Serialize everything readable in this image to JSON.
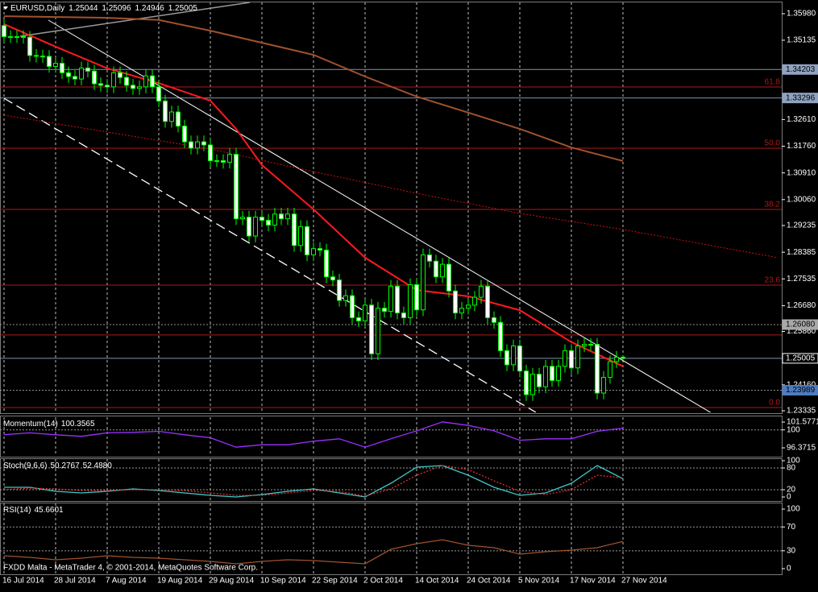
{
  "chart_data": [
    {
      "type": "candlestick",
      "title": "EURUSD,Daily",
      "up_color": "#000000",
      "down_color": "#ffffff",
      "wick_color": "#00ff00",
      "open": [
        1.356,
        1.3525,
        1.3525,
        1.3525,
        1.3523,
        1.3465,
        1.3463,
        1.3462,
        1.343,
        1.344,
        1.341,
        1.3398,
        1.339,
        1.3425,
        1.3415,
        1.3375,
        1.337,
        1.3365,
        1.341,
        1.3395,
        1.337,
        1.336,
        1.3365,
        1.34,
        1.3365,
        1.332,
        1.3255,
        1.3285,
        1.324,
        1.319,
        1.317,
        1.319,
        1.318,
        1.313,
        1.313,
        1.3125,
        1.315,
        1.2945,
        1.295,
        1.289,
        1.295,
        1.294,
        1.2925,
        1.296,
        1.2945,
        1.296,
        1.286,
        1.292,
        1.283,
        1.285,
        1.2845,
        1.276,
        1.275,
        1.2685,
        1.27,
        1.263,
        1.262,
        1.267,
        1.2515,
        1.266,
        1.265,
        1.273,
        1.2645,
        1.263,
        1.2735,
        1.2655,
        1.283,
        1.281,
        1.276,
        1.28,
        1.2715,
        1.2645,
        1.266,
        1.267,
        1.2695,
        1.273,
        1.263,
        1.2615,
        1.2525,
        1.248,
        1.254,
        1.246,
        1.2385,
        1.245,
        1.241,
        1.2475,
        1.243,
        1.2475,
        1.2525,
        1.247,
        1.254,
        1.2545,
        1.2545,
        1.239,
        1.244,
        1.249,
        1.25044
      ],
      "high": [
        1.358,
        1.3545,
        1.3545,
        1.3545,
        1.3543,
        1.3485,
        1.3483,
        1.3482,
        1.346,
        1.346,
        1.343,
        1.3418,
        1.3445,
        1.3445,
        1.3435,
        1.3395,
        1.339,
        1.343,
        1.343,
        1.3415,
        1.339,
        1.3385,
        1.342,
        1.342,
        1.3385,
        1.334,
        1.3305,
        1.3305,
        1.326,
        1.321,
        1.321,
        1.321,
        1.32,
        1.315,
        1.315,
        1.317,
        1.317,
        1.297,
        1.297,
        1.297,
        1.297,
        1.296,
        1.298,
        1.298,
        1.298,
        1.298,
        1.294,
        1.294,
        1.287,
        1.287,
        1.2865,
        1.278,
        1.277,
        1.272,
        1.272,
        1.265,
        1.269,
        1.269,
        1.268,
        1.268,
        1.275,
        1.275,
        1.2665,
        1.2755,
        1.2755,
        1.285,
        1.285,
        1.283,
        1.282,
        1.282,
        1.2735,
        1.268,
        1.269,
        1.2715,
        1.275,
        1.275,
        1.265,
        1.2635,
        1.2545,
        1.256,
        1.256,
        1.248,
        1.247,
        1.247,
        1.2495,
        1.2495,
        1.2495,
        1.2545,
        1.2545,
        1.256,
        1.2565,
        1.2565,
        1.2565,
        1.246,
        1.251,
        1.2524,
        1.25096
      ],
      "low": [
        1.3505,
        1.3505,
        1.3505,
        1.3503,
        1.3445,
        1.3443,
        1.3442,
        1.341,
        1.341,
        1.339,
        1.3378,
        1.337,
        1.337,
        1.3395,
        1.3355,
        1.335,
        1.3345,
        1.3345,
        1.3375,
        1.335,
        1.334,
        1.334,
        1.3345,
        1.3345,
        1.33,
        1.3235,
        1.3235,
        1.322,
        1.317,
        1.315,
        1.315,
        1.316,
        1.311,
        1.311,
        1.3105,
        1.3105,
        1.2925,
        1.2925,
        1.287,
        1.287,
        1.292,
        1.2905,
        1.2905,
        1.2925,
        1.2925,
        1.284,
        1.284,
        1.281,
        1.281,
        1.2825,
        1.274,
        1.273,
        1.2665,
        1.2665,
        1.261,
        1.26,
        1.26,
        1.2495,
        1.2495,
        1.263,
        1.263,
        1.2625,
        1.261,
        1.261,
        1.2635,
        1.2635,
        1.279,
        1.274,
        1.274,
        1.2695,
        1.2625,
        1.2625,
        1.264,
        1.265,
        1.2675,
        1.261,
        1.2595,
        1.2505,
        1.246,
        1.246,
        1.244,
        1.2365,
        1.2365,
        1.239,
        1.239,
        1.241,
        1.241,
        1.2455,
        1.245,
        1.245,
        1.252,
        1.2525,
        1.237,
        1.237,
        1.242,
        1.247,
        1.24946
      ],
      "close": [
        1.3525,
        1.3525,
        1.3525,
        1.3523,
        1.3465,
        1.3463,
        1.3462,
        1.343,
        1.344,
        1.341,
        1.3398,
        1.339,
        1.3425,
        1.3415,
        1.3375,
        1.337,
        1.3365,
        1.341,
        1.3395,
        1.337,
        1.336,
        1.3365,
        1.34,
        1.3365,
        1.332,
        1.3255,
        1.3285,
        1.324,
        1.319,
        1.317,
        1.319,
        1.318,
        1.313,
        1.313,
        1.3125,
        1.315,
        1.2945,
        1.295,
        1.289,
        1.295,
        1.294,
        1.2925,
        1.296,
        1.2945,
        1.296,
        1.286,
        1.292,
        1.283,
        1.285,
        1.2845,
        1.276,
        1.275,
        1.2685,
        1.27,
        1.263,
        1.262,
        1.267,
        1.2515,
        1.266,
        1.265,
        1.273,
        1.2645,
        1.263,
        1.2735,
        1.2655,
        1.283,
        1.281,
        1.276,
        1.28,
        1.2715,
        1.2645,
        1.266,
        1.267,
        1.2695,
        1.273,
        1.263,
        1.2615,
        1.2525,
        1.248,
        1.254,
        1.246,
        1.2385,
        1.245,
        1.241,
        1.2475,
        1.243,
        1.2475,
        1.2525,
        1.247,
        1.254,
        1.2545,
        1.2545,
        1.239,
        1.244,
        1.249,
        1.2504,
        1.25005
      ],
      "lines": [
        {
          "color": "#ff1a1a",
          "width": 2,
          "style": "solid",
          "x": [
            0,
            8,
            16,
            24,
            32,
            36,
            40,
            48,
            56,
            64,
            72,
            80,
            88,
            96
          ],
          "values": [
            1.3565,
            1.3493,
            1.3424,
            1.3377,
            1.3321,
            1.3231,
            1.3116,
            1.2975,
            1.2821,
            1.2718,
            1.2698,
            1.2654,
            1.2552,
            1.2475
          ]
        },
        {
          "color": "#a0522d",
          "width": 2,
          "style": "solid",
          "x": [
            0,
            16,
            24,
            32,
            48,
            56,
            64,
            72,
            80,
            88,
            96
          ],
          "values": [
            1.359,
            1.3585,
            1.3578,
            1.3544,
            1.3467,
            1.3398,
            1.3334,
            1.3283,
            1.3231,
            1.3172,
            1.3129
          ]
        },
        {
          "color": "#d01010",
          "width": 1,
          "style": "dotted",
          "x": [
            0,
            32,
            48,
            64,
            80,
            96,
            120
          ],
          "values": [
            1.3275,
            1.3167,
            1.3095,
            1.3026,
            1.2962,
            1.2911,
            1.2821
          ]
        }
      ],
      "hlines": [
        {
          "value": 1.34203,
          "color": "#7f93b3",
          "style": "solid"
        },
        {
          "value": 1.33296,
          "color": "#7f93b3",
          "style": "solid"
        },
        {
          "value": 1.2608,
          "color": "#909090",
          "style": "dotted"
        },
        {
          "value": 1.2575,
          "color": "#b01818",
          "style": "solid"
        },
        {
          "value": 1.25005,
          "color": "#7f93b3",
          "style": "solid"
        },
        {
          "value": 1.23989,
          "color": "#909090",
          "style": "dotted"
        }
      ],
      "fib_color": "#b01818",
      "fib_levels": [
        {
          "value": 1.33646,
          "label": "61.8"
        },
        {
          "value": 1.31697,
          "label": "50.0"
        },
        {
          "value": 1.29748,
          "label": "38.2"
        },
        {
          "value": 1.27337,
          "label": "23.6"
        },
        {
          "value": 1.23438,
          "label": "0.0"
        }
      ],
      "price_labels": [
        {
          "value": 1.34203,
          "color": "#8fa2c0",
          "text_color": "#000000"
        },
        {
          "value": 1.33296,
          "color": "#8fa2c0",
          "text_color": "#000000"
        },
        {
          "value": {
            "value": 1.2608,
            "label": "1.26080"
          },
          "color": "#a8a8a8",
          "text_color": "#000000"
        },
        {
          "value": 1.25005,
          "color": "#000000",
          "text_color": "#ffffff"
        },
        {
          "value": 1.23989,
          "color": "#4f7cc0",
          "text_color": "#000000"
        }
      ],
      "ylim": [
        1.23284,
        1.36339
      ],
      "yticks": [
        {
          "value": 1.3598,
          "label": "1.35980"
        },
        1.35135,
        {
          "value": 1.3261,
          "label": "1.32610"
        },
        {
          "value": 1.3176,
          "label": "1.31760"
        },
        {
          "value": 1.3091,
          "label": "1.30910"
        },
        {
          "value": 1.3006,
          "label": "1.30060"
        },
        1.29235,
        1.28385,
        1.27535,
        {
          "value": 1.2668,
          "label": "1.26680"
        },
        {
          "value": 1.2586,
          "label": "1.25860"
        },
        {
          "value": 1.2416,
          "label": "1.24160"
        },
        1.23335
      ],
      "xticks": [
        {
          "value": 0,
          "label": "16 Jul 2014"
        },
        {
          "value": 8,
          "label": "28 Jul 2014"
        },
        {
          "value": 16,
          "label": "7 Aug 2014"
        },
        {
          "value": 24,
          "label": "19 Aug 2014"
        },
        {
          "value": 32,
          "label": "29 Aug 2014"
        },
        {
          "value": 40,
          "label": "10 Sep 2014"
        },
        {
          "value": 48,
          "label": "22 Sep 2014"
        },
        {
          "value": 56,
          "label": "2 Oct 2014"
        },
        {
          "value": 64,
          "label": "14 Oct 2014"
        },
        {
          "value": 72,
          "label": "24 Oct 2014"
        },
        {
          "value": 80,
          "label": "5 Nov 2014"
        },
        {
          "value": 88,
          "label": "17 Nov 2014"
        },
        {
          "value": 96,
          "label": "27 Nov 2014"
        }
      ],
      "grid": true,
      "footer": "FXDD Malta - MetaTrader 4, © 2001-2014, MetaQuotes Software Corp."
    },
    {
      "type": "line",
      "title": "Momentum(14)",
      "x": [
        0,
        4,
        8,
        12,
        16,
        20,
        24,
        28,
        32,
        36,
        40,
        44,
        48,
        52,
        56,
        60,
        64,
        68,
        72,
        76,
        80,
        84,
        88,
        92,
        96
      ],
      "series": [
        {
          "color": "#9b30ff",
          "values": [
            99.03,
            99.4,
            99.0,
            98.7,
            99.4,
            99.5,
            99.7,
            99.0,
            98.4,
            96.5,
            97.0,
            97.0,
            97.7,
            98.2,
            96.5,
            98.2,
            99.8,
            101.6,
            100.9,
            99.8,
            97.9,
            98.2,
            98.2,
            99.7,
            100.3565
          ]
        }
      ],
      "ylim": [
        94.75,
        102.55
      ],
      "yticks": [
        101.5771,
        100,
        96.3715
      ],
      "levels": [
        100
      ]
    },
    {
      "type": "line",
      "title": "Stoch(9,6,6)",
      "x": [
        0,
        4,
        8,
        12,
        16,
        20,
        24,
        28,
        32,
        36,
        40,
        44,
        48,
        52,
        56,
        60,
        64,
        68,
        72,
        76,
        80,
        84,
        88,
        92,
        96
      ],
      "series": [
        {
          "color": "#40c8c8",
          "style": "solid",
          "values": [
            26.7,
            26.7,
            15.6,
            11.1,
            15.6,
            22.2,
            17.8,
            11.1,
            4.4,
            0,
            6.7,
            15.6,
            22.2,
            11.1,
            0,
            37.8,
            82.2,
            86.7,
            60,
            26.7,
            4.4,
            11.1,
            37.8,
            86.7,
            50.2767
          ]
        },
        {
          "color": "#e03030",
          "style": "dotted",
          "values": [
            20,
            24.4,
            22.2,
            17.8,
            17.8,
            20,
            20,
            17.8,
            11.1,
            4.4,
            4.4,
            11.1,
            17.8,
            15.6,
            2.2,
            22.2,
            60,
            86.7,
            75.6,
            44.4,
            15.6,
            6.7,
            20,
            60,
            52.488
          ],
          "value_labels": [
            null,
            null,
            null,
            null,
            null,
            null,
            null,
            null,
            null,
            null,
            null,
            null,
            null,
            null,
            null,
            null,
            null,
            null,
            null,
            null,
            null,
            null,
            null,
            null,
            "52.4880"
          ]
        }
      ],
      "ylim": [
        -8.9,
        104.4
      ],
      "yticks": [
        100,
        80,
        20,
        0
      ],
      "levels": [
        80,
        20
      ]
    },
    {
      "type": "line",
      "title": "RSI(14)",
      "x": [
        0,
        4,
        8,
        12,
        16,
        20,
        24,
        28,
        32,
        36,
        40,
        44,
        48,
        52,
        56,
        60,
        64,
        68,
        72,
        76,
        80,
        84,
        88,
        92,
        96
      ],
      "series": [
        {
          "color": "#a0522d",
          "values": [
            21.6,
            18.9,
            14.9,
            17.6,
            21.6,
            18.9,
            17.6,
            14.9,
            12.2,
            8.1,
            12.2,
            14.9,
            13.5,
            10.8,
            8.1,
            32.4,
            41.9,
            48.6,
            39.2,
            35.1,
            24.3,
            28.4,
            31.1,
            35.1,
            45.6601
          ]
        }
      ],
      "ylim": [
        -8.1,
        109.5
      ],
      "yticks": [
        100,
        70,
        30,
        0
      ],
      "levels": [
        70,
        30
      ]
    }
  ]
}
